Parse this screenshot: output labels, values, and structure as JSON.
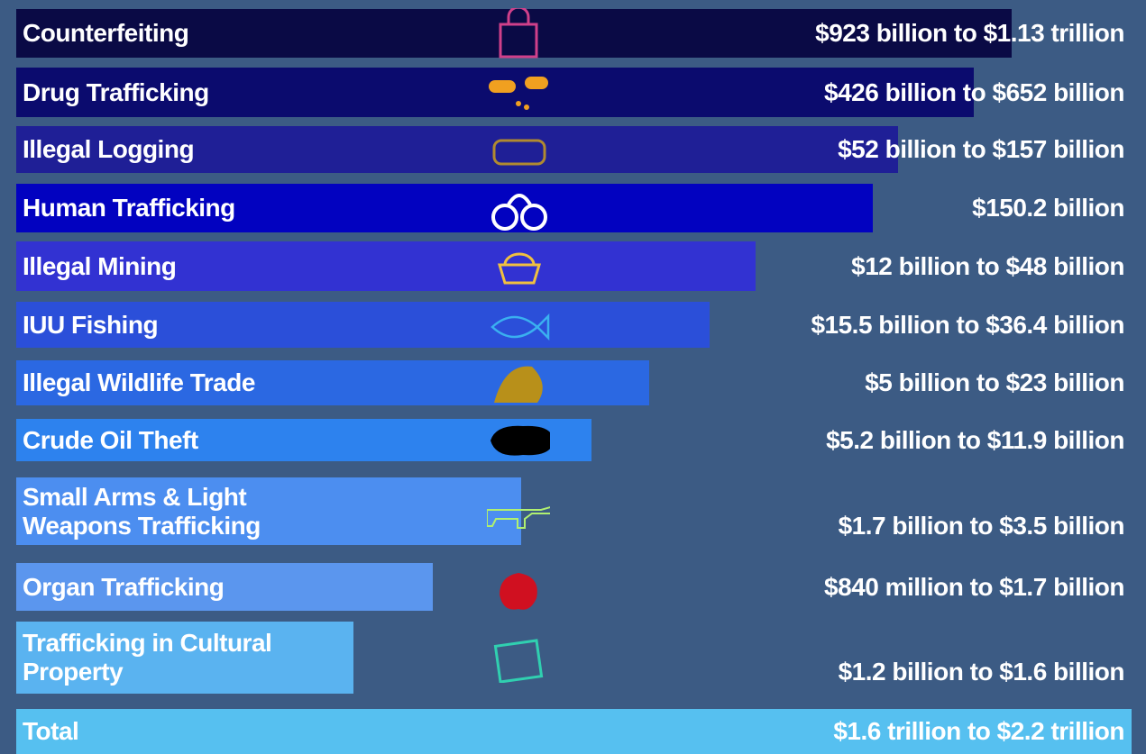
{
  "rows": [
    {
      "label": "Counterfeiting",
      "amount": "$923 billion to $1.13 trillion",
      "color": "#0a0a45"
    },
    {
      "label": "Drug Trafficking",
      "amount": "$426 billion to $652 billion",
      "color": "#0b0b6e"
    },
    {
      "label": "Illegal Logging",
      "amount": "$52 billion to $157 billion",
      "color": "#1f1f96"
    },
    {
      "label": "Human Trafficking",
      "amount": "$150.2 billion",
      "color": "#0202c0"
    },
    {
      "label": "Illegal Mining",
      "amount": "$12 billion to $48 billion",
      "color": "#3232d2"
    },
    {
      "label": "IUU Fishing",
      "amount": "$15.5 billion to $36.4 billion",
      "color": "#2b4fd9"
    },
    {
      "label": "Illegal Wildlife Trade",
      "amount": "$5 billion to $23 billion",
      "color": "#2b68e2"
    },
    {
      "label": "Crude Oil Theft",
      "amount": "$5.2 billion to $11.9 billion",
      "color": "#2d82ee"
    },
    {
      "label": "Small Arms & Light Weapons Trafficking",
      "amount": "$1.7 billion to $3.5 billion",
      "color": "#4c8ef0"
    },
    {
      "label": "Organ Trafficking",
      "amount": "$840 million to $1.7 billion",
      "color": "#5b96ee"
    },
    {
      "label": "Trafficking in Cultural Property",
      "amount": "$1.2 billion to $1.6 billion",
      "color": "#5ab3f0"
    },
    {
      "label": "Total",
      "amount": "$1.6 trillion to $2.2 trillion",
      "color": "#56c0f0"
    }
  ]
}
